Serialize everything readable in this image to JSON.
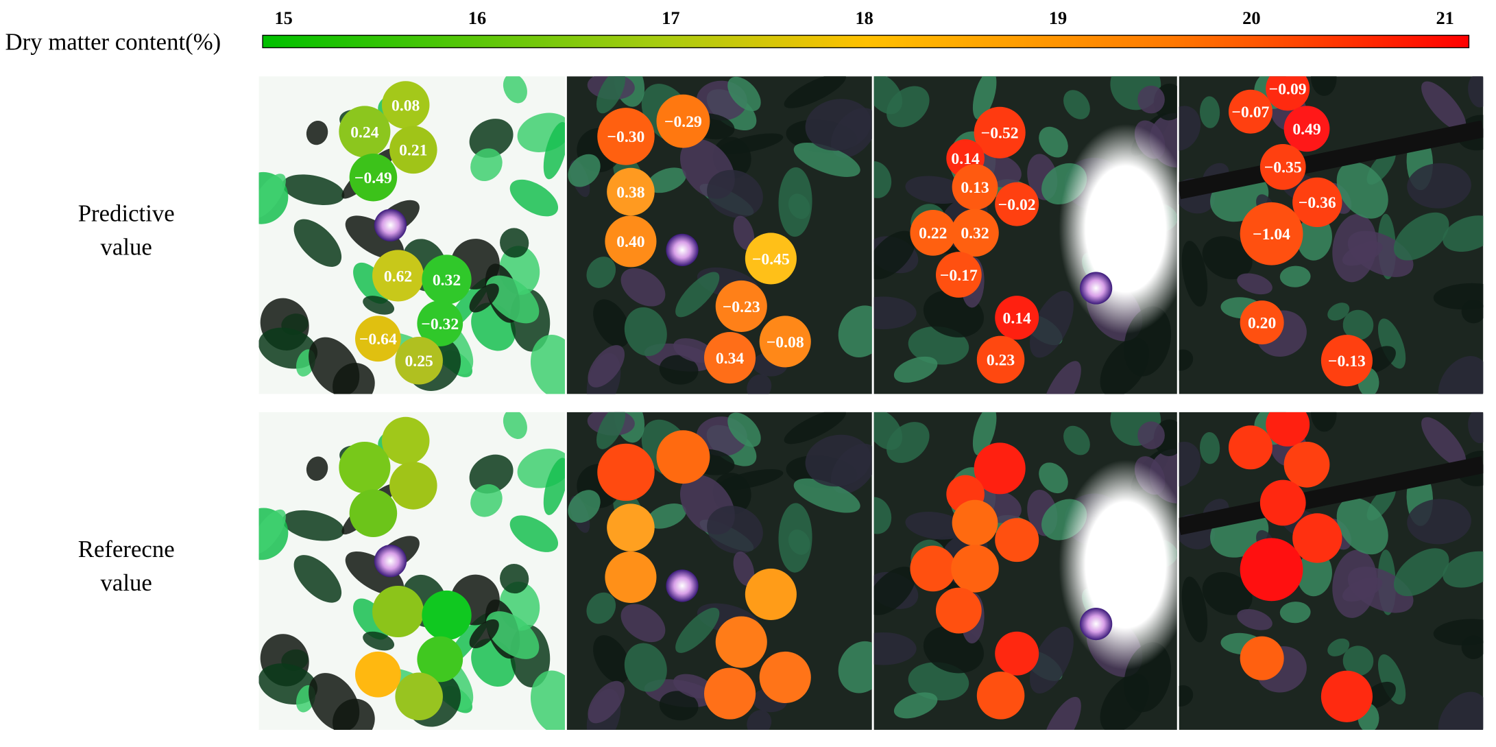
{
  "colorbar": {
    "label": "Dry matter content(%)",
    "ticks": [
      15,
      16,
      17,
      18,
      19,
      20,
      21
    ]
  },
  "rows": [
    {
      "label_lines": [
        "Predictive",
        "value"
      ]
    },
    {
      "label_lines": [
        "Referecne",
        "value"
      ]
    }
  ],
  "panels": [
    {
      "fruits": [
        {
          "error": "0.08",
          "predicted_color": "#a4c81a",
          "reference_color": "#a0c81a"
        },
        {
          "error": "0.24",
          "predicted_color": "#8cc61e",
          "reference_color": "#78c81a"
        },
        {
          "error": "0.21",
          "predicted_color": "#a0c418",
          "reference_color": "#a0c418"
        },
        {
          "error": "−0.49",
          "predicted_color": "#3cc21a",
          "reference_color": "#6cc41a"
        },
        {
          "error": "0.62",
          "predicted_color": "#c8c81a",
          "reference_color": "#8cc41a"
        },
        {
          "error": "0.32",
          "predicted_color": "#30c82a",
          "reference_color": "#10c820"
        },
        {
          "error": "−0.32",
          "predicted_color": "#30c82a",
          "reference_color": "#40c820"
        },
        {
          "error": "−0.64",
          "predicted_color": "#e0c010",
          "reference_color": "#ffb810"
        },
        {
          "error": "0.25",
          "predicted_color": "#b0c020",
          "reference_color": "#98c420"
        }
      ]
    },
    {
      "fruits": [
        {
          "error": "−0.30",
          "predicted_color": "#ff6010",
          "reference_color": "#ff4a10"
        },
        {
          "error": "−0.29",
          "predicted_color": "#ff7810",
          "reference_color": "#ff6a10"
        },
        {
          "error": "0.38",
          "predicted_color": "#ff9a20",
          "reference_color": "#ffa020"
        },
        {
          "error": "0.40",
          "predicted_color": "#ff8c18",
          "reference_color": "#ff9018"
        },
        {
          "error": "−0.45",
          "predicted_color": "#ffc018",
          "reference_color": "#ff9c18"
        },
        {
          "error": "−0.23",
          "predicted_color": "#ff8018",
          "reference_color": "#ff7c18"
        },
        {
          "error": "−0.08",
          "predicted_color": "#ff8818",
          "reference_color": "#ff7418"
        },
        {
          "error": "0.34",
          "predicted_color": "#ff6e18",
          "reference_color": "#ff7018"
        }
      ]
    },
    {
      "fruits": [
        {
          "error": "−0.52",
          "predicted_color": "#ff3a10",
          "reference_color": "#ff2010"
        },
        {
          "error": "0.14",
          "predicted_color": "#ff2a10",
          "reference_color": "#ff3810"
        },
        {
          "error": "0.13",
          "predicted_color": "#ff5a10",
          "reference_color": "#ff6a10"
        },
        {
          "error": "−0.02",
          "predicted_color": "#ff4010",
          "reference_color": "#ff5010"
        },
        {
          "error": "0.22",
          "predicted_color": "#ff6010",
          "reference_color": "#ff5010"
        },
        {
          "error": "0.32",
          "predicted_color": "#ff6010",
          "reference_color": "#ff6210"
        },
        {
          "error": "−0.17",
          "predicted_color": "#ff5010",
          "reference_color": "#ff5010"
        },
        {
          "error": "0.14",
          "predicted_color": "#ff2010",
          "reference_color": "#ff2810"
        },
        {
          "error": "0.23",
          "predicted_color": "#ff4810",
          "reference_color": "#ff5010"
        }
      ]
    },
    {
      "fruits": [
        {
          "error": "−0.09",
          "predicted_color": "#ff2a10",
          "reference_color": "#ff2010"
        },
        {
          "error": "−0.07",
          "predicted_color": "#ff4010",
          "reference_color": "#ff3810"
        },
        {
          "error": "0.49",
          "predicted_color": "#ff1818",
          "reference_color": "#ff4010"
        },
        {
          "error": "−0.35",
          "predicted_color": "#ff4010",
          "reference_color": "#ff2810"
        },
        {
          "error": "−0.36",
          "predicted_color": "#ff4010",
          "reference_color": "#ff3010"
        },
        {
          "error": "−1.04",
          "predicted_color": "#ff5010",
          "reference_color": "#ff1010"
        },
        {
          "error": "0.20",
          "predicted_color": "#ff5010",
          "reference_color": "#ff6010"
        },
        {
          "error": "−0.13",
          "predicted_color": "#ff4010",
          "reference_color": "#ff2a10"
        }
      ]
    }
  ]
}
